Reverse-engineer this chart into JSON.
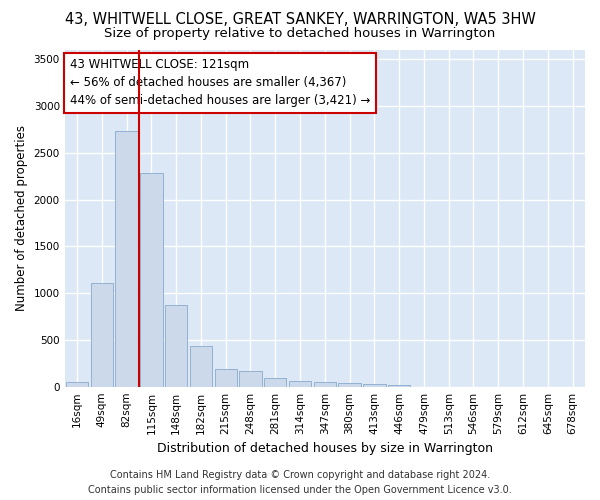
{
  "title": "43, WHITWELL CLOSE, GREAT SANKEY, WARRINGTON, WA5 3HW",
  "subtitle": "Size of property relative to detached houses in Warrington",
  "xlabel": "Distribution of detached houses by size in Warrington",
  "ylabel": "Number of detached properties",
  "categories": [
    "16sqm",
    "49sqm",
    "82sqm",
    "115sqm",
    "148sqm",
    "182sqm",
    "215sqm",
    "248sqm",
    "281sqm",
    "314sqm",
    "347sqm",
    "380sqm",
    "413sqm",
    "446sqm",
    "479sqm",
    "513sqm",
    "546sqm",
    "579sqm",
    "612sqm",
    "645sqm",
    "678sqm"
  ],
  "values": [
    50,
    1110,
    2730,
    2290,
    870,
    430,
    185,
    170,
    95,
    65,
    55,
    35,
    30,
    20,
    0,
    0,
    0,
    0,
    0,
    0,
    0
  ],
  "bar_color": "#ccd9ea",
  "bar_edge_color": "#88aacc",
  "vline_color": "#cc0000",
  "vline_index": 3,
  "annotation_text": "43 WHITWELL CLOSE: 121sqm\n← 56% of detached houses are smaller (4,367)\n44% of semi-detached houses are larger (3,421) →",
  "annotation_box_facecolor": "white",
  "annotation_box_edgecolor": "#cc0000",
  "ylim": [
    0,
    3600
  ],
  "yticks": [
    0,
    500,
    1000,
    1500,
    2000,
    2500,
    3000,
    3500
  ],
  "fig_bg_color": "#ffffff",
  "plot_bg_color": "#dce8f5",
  "grid_color": "#ffffff",
  "title_fontsize": 10.5,
  "subtitle_fontsize": 9.5,
  "xlabel_fontsize": 9,
  "ylabel_fontsize": 8.5,
  "tick_fontsize": 7.5,
  "footer_fontsize": 7,
  "annotation_fontsize": 8.5,
  "footer_line1": "Contains HM Land Registry data © Crown copyright and database right 2024.",
  "footer_line2": "Contains public sector information licensed under the Open Government Licence v3.0."
}
